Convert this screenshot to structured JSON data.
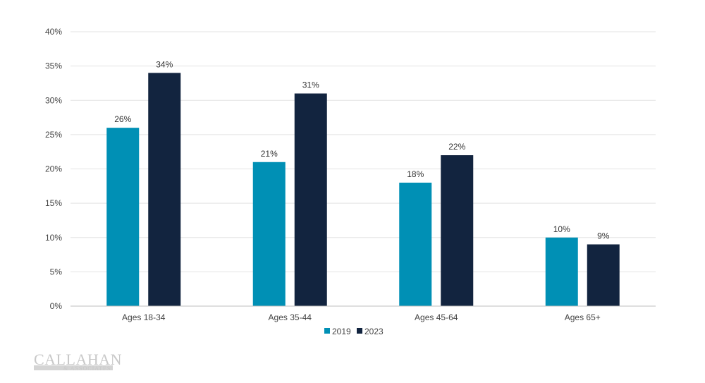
{
  "chart_data": {
    "type": "bar",
    "categories": [
      "Ages 18-34",
      "Ages 35-44",
      "Ages 45-64",
      "Ages 65+"
    ],
    "series": [
      {
        "name": "2019",
        "color": "#0090b5",
        "values": [
          26,
          21,
          18,
          10
        ]
      },
      {
        "name": "2023",
        "color": "#12243f",
        "values": [
          34,
          31,
          22,
          9
        ]
      }
    ],
    "data_labels": [
      [
        "26%",
        "21%",
        "18%",
        "10%"
      ],
      [
        "34%",
        "31%",
        "22%",
        "9%"
      ]
    ],
    "yticks": [
      0,
      5,
      10,
      15,
      20,
      25,
      30,
      35,
      40
    ],
    "ytick_labels": [
      "0%",
      "5%",
      "10%",
      "15%",
      "20%",
      "25%",
      "30%",
      "35%",
      "40%"
    ],
    "ylim": [
      0,
      40
    ],
    "grid": true,
    "legend": "bottom-center"
  },
  "logo": {
    "main": "CALLAHAN",
    "sub": "& ASSOCIATES"
  }
}
